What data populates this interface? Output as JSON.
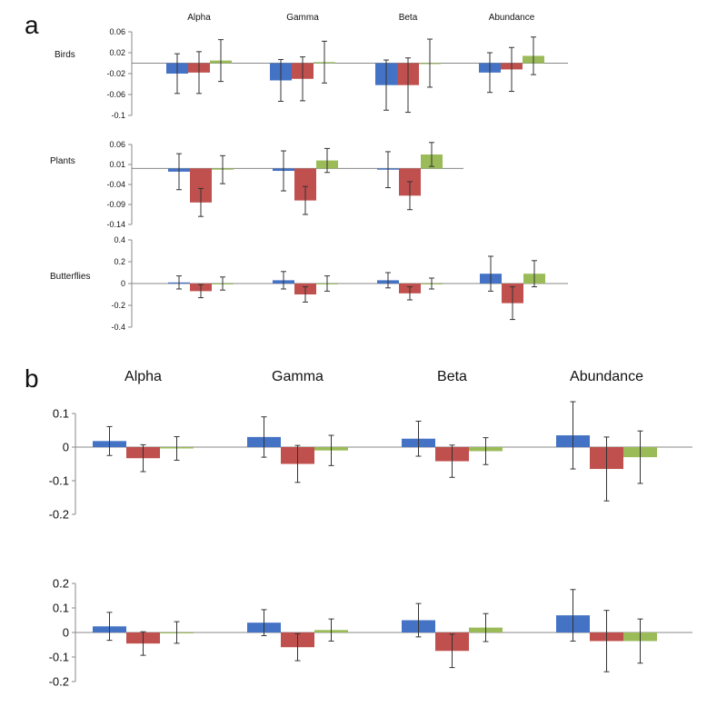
{
  "panel_labels": {
    "a": "a",
    "b": "b"
  },
  "colors": {
    "blue": "#4472C4",
    "red": "#C0504D",
    "green": "#9BBB59",
    "axis": "#888888",
    "error": "#333333"
  },
  "chart_data": [
    {
      "type": "bar",
      "panel": "a",
      "row_label": "Birds",
      "categories": [
        "Alpha",
        "Gamma",
        "Beta",
        "Abundance"
      ],
      "ylim": [
        -0.1,
        0.06
      ],
      "yticks": [
        "0.06",
        "0.02",
        "-0.02",
        "-0.06",
        "-0.1"
      ],
      "series": [
        {
          "color": "blue",
          "values": [
            -0.02,
            -0.033,
            -0.042,
            -0.018
          ],
          "err": [
            0.038,
            0.04,
            0.048,
            0.038
          ]
        },
        {
          "color": "red",
          "values": [
            -0.018,
            -0.03,
            -0.042,
            -0.012
          ],
          "err": [
            0.04,
            0.042,
            0.052,
            0.042
          ]
        },
        {
          "color": "green",
          "values": [
            0.005,
            0.002,
            0.0,
            0.014
          ],
          "err": [
            0.04,
            0.04,
            0.046,
            0.036
          ]
        }
      ]
    },
    {
      "type": "bar",
      "panel": "a",
      "row_label": "Plants",
      "categories": [
        "Alpha",
        "Gamma",
        "Beta",
        "Abundance"
      ],
      "ylim": [
        -0.14,
        0.06
      ],
      "yticks": [
        "0.06",
        "0.01",
        "-0.04",
        "-0.09",
        "-0.14"
      ],
      "series": [
        {
          "color": "blue",
          "values": [
            -0.008,
            -0.006,
            -0.003,
            null
          ],
          "err": [
            0.045,
            0.05,
            0.045,
            null
          ]
        },
        {
          "color": "red",
          "values": [
            -0.085,
            -0.08,
            -0.068,
            null
          ],
          "err": [
            0.035,
            0.035,
            0.035,
            null
          ]
        },
        {
          "color": "green",
          "values": [
            -0.003,
            0.02,
            0.035,
            null
          ],
          "err": [
            0.035,
            0.03,
            0.03,
            null
          ]
        }
      ]
    },
    {
      "type": "bar",
      "panel": "a",
      "row_label": "Butterflies",
      "categories": [
        "Alpha",
        "Gamma",
        "Beta",
        "Abundance"
      ],
      "ylim": [
        -0.4,
        0.4
      ],
      "yticks": [
        "0.4",
        "0.2",
        "0",
        "-0.2",
        "-0.4"
      ],
      "series": [
        {
          "color": "blue",
          "values": [
            0.01,
            0.03,
            0.03,
            0.09
          ],
          "err": [
            0.06,
            0.08,
            0.07,
            0.16
          ]
        },
        {
          "color": "red",
          "values": [
            -0.07,
            -0.1,
            -0.09,
            -0.18
          ],
          "err": [
            0.06,
            0.07,
            0.06,
            0.15
          ]
        },
        {
          "color": "green",
          "values": [
            0.0,
            0.0,
            0.0,
            0.09
          ],
          "err": [
            0.06,
            0.07,
            0.05,
            0.12
          ]
        }
      ]
    },
    {
      "type": "bar",
      "panel": "b",
      "row_label": "",
      "categories": [
        "Alpha",
        "Gamma",
        "Beta",
        "Abundance"
      ],
      "ylim": [
        -0.2,
        0.1
      ],
      "yticks": [
        "0.1",
        "0",
        "-0.1",
        "-0.2"
      ],
      "series": [
        {
          "color": "blue",
          "values": [
            0.018,
            0.03,
            0.025,
            0.035
          ],
          "err": [
            0.043,
            0.06,
            0.052,
            0.1
          ]
        },
        {
          "color": "red",
          "values": [
            -0.033,
            -0.05,
            -0.042,
            -0.065
          ],
          "err": [
            0.04,
            0.055,
            0.048,
            0.095
          ]
        },
        {
          "color": "green",
          "values": [
            -0.004,
            -0.01,
            -0.012,
            -0.03
          ],
          "err": [
            0.035,
            0.045,
            0.04,
            0.078
          ]
        }
      ]
    },
    {
      "type": "bar",
      "panel": "b",
      "row_label": "",
      "categories": [
        "Alpha",
        "Gamma",
        "Beta",
        "Abundance"
      ],
      "ylim": [
        -0.2,
        0.2
      ],
      "yticks": [
        "0.2",
        "0.1",
        "0",
        "-0.1",
        "-0.2"
      ],
      "series": [
        {
          "color": "blue",
          "values": [
            0.025,
            0.04,
            0.05,
            0.07
          ],
          "err": [
            0.057,
            0.053,
            0.068,
            0.105
          ]
        },
        {
          "color": "red",
          "values": [
            -0.045,
            -0.06,
            -0.075,
            -0.035
          ],
          "err": [
            0.048,
            0.055,
            0.068,
            0.125
          ]
        },
        {
          "color": "green",
          "values": [
            0.0,
            0.01,
            0.02,
            -0.035
          ],
          "err": [
            0.044,
            0.045,
            0.057,
            0.09
          ]
        }
      ]
    }
  ]
}
